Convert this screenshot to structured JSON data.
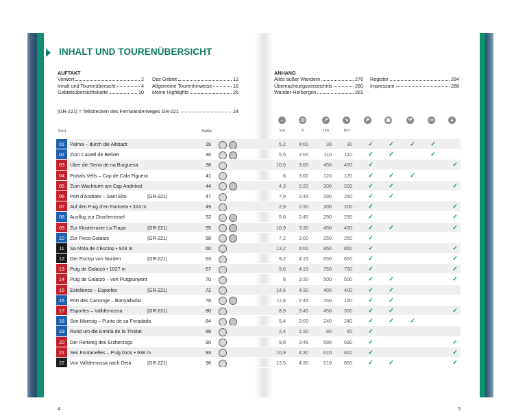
{
  "header": {
    "title": "INHALT UND TOURENÜBERSICHT"
  },
  "auftakt": {
    "heading": "AUFTAKT",
    "items": [
      {
        "label": "Vorwort",
        "page": "2"
      },
      {
        "label": "Inhalt und Tourenübersicht",
        "page": "4"
      },
      {
        "label": "Gebietsübersichtskarte",
        "page": "10"
      }
    ],
    "items2": [
      {
        "label": "Das Gebiet",
        "page": "12"
      },
      {
        "label": "Allgemeine Tourenhinweise",
        "page": "16"
      },
      {
        "label": "Meine Highlights",
        "page": "26"
      }
    ],
    "gr_note": {
      "label": "|GR-221| = Teilstrecken des Fernwanderweges GR-221",
      "page": "24"
    }
  },
  "anhang": {
    "heading": "ANHANG",
    "items": [
      {
        "label": "Alles außer Wandern",
        "page": "276"
      },
      {
        "label": "Übernachtungsverzeichnis",
        "page": "280"
      },
      {
        "label": "Wander-Herbergen",
        "page": "281"
      }
    ],
    "items2": [
      {
        "label": "Register",
        "page": "284"
      },
      {
        "label": "Impressum",
        "page": "288"
      }
    ]
  },
  "table": {
    "col_tour": "Tour",
    "col_seite": "Seite",
    "units": {
      "km": "km",
      "h": "h",
      "hm1": "hm",
      "hm2": "hm"
    },
    "icons": [
      "distance-icon",
      "clock-icon",
      "ascent-icon",
      "descent-icon",
      "parking-icon",
      "bus-icon",
      "restaurant-icon",
      "hut-icon",
      "summit-icon"
    ],
    "rows": [
      {
        "n": "01",
        "color": "#1f5fb0",
        "name": "Palma – durch die Altstadt",
        "gr": "",
        "seite": "28",
        "kid": true,
        "km": "5,2",
        "h": "4:00",
        "hm1": "30",
        "hm2": "30",
        "c": [
          1,
          1,
          1,
          1,
          0
        ]
      },
      {
        "n": "02",
        "color": "#1f5fb0",
        "name": "Zum Castell de Bellver",
        "gr": "",
        "seite": "36",
        "kid": true,
        "km": "5,5",
        "h": "2:00",
        "hm1": "110",
        "hm2": "110",
        "c": [
          1,
          1,
          0,
          1,
          0
        ]
      },
      {
        "n": "03",
        "color": "#c4202a",
        "name": "Über die Serra de na Burguesa",
        "gr": "",
        "seite": "38",
        "kid": false,
        "km": "10,5",
        "h": "3:00",
        "hm1": "450",
        "hm2": "450",
        "c": [
          1,
          0,
          0,
          0,
          1
        ]
      },
      {
        "n": "04",
        "color": "#c4202a",
        "name": "Portals Vells – Cap de Cala Figuera",
        "gr": "",
        "seite": "41",
        "kid": false,
        "km": "6",
        "h": "3:00",
        "hm1": "120",
        "hm2": "120",
        "c": [
          1,
          1,
          1,
          0,
          0
        ]
      },
      {
        "n": "05",
        "color": "#c4202a",
        "name": "Zum Wachturm am Cap Andritxol",
        "gr": "",
        "seite": "44",
        "kid": true,
        "km": "4,3",
        "h": "2:20",
        "hm1": "200",
        "hm2": "200",
        "c": [
          1,
          1,
          0,
          0,
          1
        ]
      },
      {
        "n": "06",
        "color": "#c4202a",
        "name": "Port d’Andratx – Sant Elm",
        "gr": "|GR-221|",
        "seite": "47",
        "kid": false,
        "km": "7,9",
        "h": "2:45",
        "hm1": "290",
        "hm2": "290",
        "c": [
          1,
          1,
          0,
          0,
          0
        ]
      },
      {
        "n": "07",
        "color": "#c4202a",
        "name": "Auf den Puig d’en Farineta • 324 m",
        "gr": "",
        "seite": "49",
        "kid": false,
        "km": "2,9",
        "h": "2:30",
        "hm1": "200",
        "hm2": "200",
        "c": [
          1,
          0,
          0,
          0,
          1
        ]
      },
      {
        "n": "08",
        "color": "#1f5fb0",
        "name": "Ausflug zur Dracheninsel",
        "gr": "",
        "seite": "52",
        "kid": true,
        "km": "5,6",
        "h": "2:45",
        "hm1": "290",
        "hm2": "290",
        "c": [
          1,
          0,
          0,
          0,
          1
        ]
      },
      {
        "n": "09",
        "color": "#c4202a",
        "name": "Zur Klosterruine La Trapa",
        "gr": "|GR-221|",
        "seite": "55",
        "kid": true,
        "km": "10,9",
        "h": "3:30",
        "hm1": "450",
        "hm2": "450",
        "c": [
          1,
          1,
          0,
          0,
          1
        ]
      },
      {
        "n": "10",
        "color": "#1f5fb0",
        "name": "Zur Finca Galatzó",
        "gr": "|GR-221|",
        "seite": "58",
        "kid": true,
        "km": "7,2",
        "h": "3:00",
        "hm1": "250",
        "hm2": "250",
        "c": [
          1,
          0,
          0,
          0,
          0
        ]
      },
      {
        "n": "11",
        "color": "#1a1a1a",
        "name": "Sa Mola de s’Esclop • 928 m",
        "gr": "",
        "seite": "60",
        "kid": false,
        "km": "13,2",
        "h": "6:00",
        "hm1": "850",
        "hm2": "850",
        "c": [
          1,
          0,
          0,
          0,
          1
        ]
      },
      {
        "n": "12",
        "color": "#1a1a1a",
        "name": "Der Esclop von Norden",
        "gr": "|GR-221|",
        "seite": "63",
        "kid": false,
        "km": "9,2",
        "h": "4:15",
        "hm1": "650",
        "hm2": "650",
        "c": [
          1,
          0,
          0,
          0,
          1
        ]
      },
      {
        "n": "13",
        "color": "#c4202a",
        "name": "Puig de Galatzó • 1027 m",
        "gr": "",
        "seite": "67",
        "kid": false,
        "km": "9,6",
        "h": "4:15",
        "hm1": "750",
        "hm2": "750",
        "c": [
          1,
          0,
          0,
          0,
          1
        ]
      },
      {
        "n": "14",
        "color": "#c4202a",
        "name": "Puig de Galatzó – von Puigpunyent",
        "gr": "",
        "seite": "70",
        "kid": false,
        "km": "8",
        "h": "3:30",
        "hm1": "500",
        "hm2": "500",
        "c": [
          1,
          1,
          0,
          0,
          1
        ]
      },
      {
        "n": "15",
        "color": "#c4202a",
        "name": "Estellencs – Esporles",
        "gr": "|GR-221|",
        "seite": "72",
        "kid": false,
        "km": "14,6",
        "h": "4:30",
        "hm1": "400",
        "hm2": "400",
        "c": [
          1,
          1,
          0,
          0,
          0
        ]
      },
      {
        "n": "16",
        "color": "#1f5fb0",
        "name": "Port des Canonge – Banyalbufar",
        "gr": "",
        "seite": "78",
        "kid": true,
        "km": "11,6",
        "h": "2:45",
        "hm1": "150",
        "hm2": "150",
        "c": [
          1,
          1,
          0,
          0,
          0
        ]
      },
      {
        "n": "17",
        "color": "#c4202a",
        "name": "Esporles – Valldemossa",
        "gr": "|GR-221|",
        "seite": "80",
        "kid": false,
        "km": "8,9",
        "h": "3:45",
        "hm1": "450",
        "hm2": "300",
        "c": [
          1,
          1,
          0,
          0,
          1
        ]
      },
      {
        "n": "18",
        "color": "#1f5fb0",
        "name": "Son Marroig – Punta de sa Foradada",
        "gr": "",
        "seite": "84",
        "kid": true,
        "km": "5,4",
        "h": "2:00",
        "hm1": "240",
        "hm2": "240",
        "c": [
          1,
          1,
          1,
          0,
          0
        ]
      },
      {
        "n": "19",
        "color": "#1f5fb0",
        "name": "Rund um die Ermita de la Trinitat",
        "gr": "",
        "seite": "88",
        "kid": false,
        "km": "2,4",
        "h": "1:30",
        "hm1": "80",
        "hm2": "80",
        "c": [
          1,
          0,
          0,
          0,
          0
        ]
      },
      {
        "n": "20",
        "color": "#c4202a",
        "name": "Der Reitweg des Erzherzogs",
        "gr": "",
        "seite": "90",
        "kid": false,
        "km": "9,8",
        "h": "3:45",
        "hm1": "590",
        "hm2": "590",
        "c": [
          1,
          0,
          0,
          0,
          1
        ]
      },
      {
        "n": "21",
        "color": "#c4202a",
        "name": "Ses Fontanelles – Puig Gros • 938 m",
        "gr": "",
        "seite": "93",
        "kid": false,
        "km": "10,9",
        "h": "4:30",
        "hm1": "610",
        "hm2": "610",
        "c": [
          1,
          0,
          0,
          0,
          1
        ]
      },
      {
        "n": "22",
        "color": "#1a1a1a",
        "name": "Von Valldemossa nach Deià",
        "gr": "|GR-221|",
        "seite": "96",
        "kid": false,
        "km": "13,5",
        "h": "4:30",
        "hm1": "610",
        "hm2": "850",
        "c": [
          1,
          1,
          0,
          0,
          1
        ]
      }
    ]
  },
  "footer": {
    "left_page": "4",
    "right_page": "5"
  },
  "colors": {
    "accent": "#0f8f6f",
    "blue": "#1f5fb0",
    "red": "#c4202a",
    "black": "#1a1a1a"
  }
}
